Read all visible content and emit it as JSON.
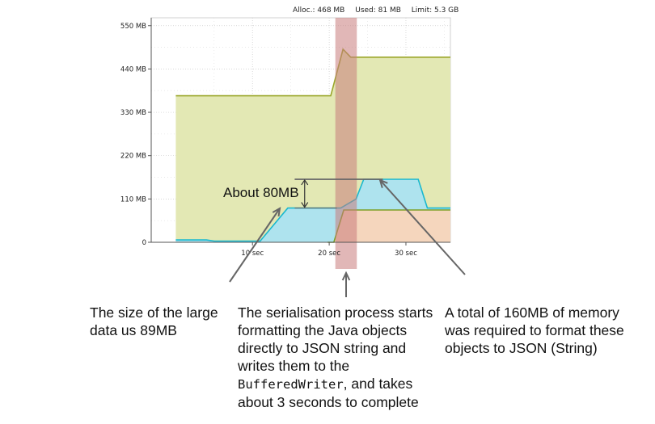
{
  "stats": {
    "alloc": "Alloc.: 468 MB",
    "used": "Used: 81 MB",
    "limit": "Limit: 5.3 GB"
  },
  "chart_data": {
    "type": "area",
    "x_unit": "sec",
    "xlim": [
      -3.2,
      35.8
    ],
    "ylim": [
      0,
      570
    ],
    "y_ticks": [
      0,
      110,
      220,
      330,
      440,
      550
    ],
    "y_tick_labels": [
      "0",
      "110 MB",
      "220 MB",
      "330 MB",
      "440 MB",
      "550 MB"
    ],
    "x_ticks": [
      10,
      20,
      30
    ],
    "x_tick_labels": [
      "10 sec",
      "20 sec",
      "30 sec"
    ],
    "grid": true,
    "colors": {
      "allocated_fill": "#e3e8b4",
      "allocated_line": "#9aa62a",
      "cyan_fill": "#aee3ee",
      "cyan_line": "#19b8cf",
      "orange_fill": "#f9d5b9",
      "orange_line": "#7c9f26",
      "highlight": "#c97b7b",
      "annotation": "#666666"
    },
    "series": [
      {
        "key": "allocated",
        "points": [
          [
            0,
            372
          ],
          [
            18.6,
            372
          ],
          [
            20.2,
            372
          ],
          [
            21.8,
            490
          ],
          [
            22.8,
            470
          ],
          [
            35.8,
            470
          ]
        ]
      },
      {
        "key": "cyan",
        "points": [
          [
            0,
            6
          ],
          [
            4,
            6
          ],
          [
            5,
            3
          ],
          [
            11,
            3
          ],
          [
            14.6,
            87
          ],
          [
            21.5,
            87
          ],
          [
            23.5,
            110
          ],
          [
            24.5,
            160
          ],
          [
            31.6,
            160
          ],
          [
            32.8,
            87
          ],
          [
            35.8,
            87
          ]
        ]
      },
      {
        "key": "orange",
        "points": [
          [
            19.8,
            0
          ],
          [
            20.6,
            0
          ],
          [
            21.9,
            82
          ],
          [
            35.8,
            82
          ]
        ]
      }
    ],
    "highlight_x": [
      20.8,
      23.6
    ],
    "annotation_label": "About 80MB",
    "annotation_levels": [
      87,
      160
    ]
  },
  "captions": {
    "left": "The size of the large data us 89MB",
    "middle_before": "The serialisation process starts formatting the Java objects directly to JSON string and writes them to the ",
    "middle_code": "BufferedWriter",
    "middle_after": ", and takes about 3 seconds to complete",
    "right": "A total of 160MB of memory was required to format these objects to JSON (String)"
  }
}
